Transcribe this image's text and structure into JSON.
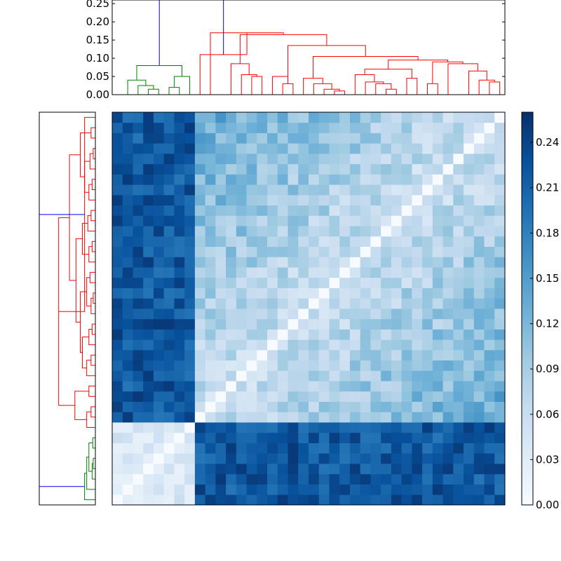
{
  "chart_data": [
    {
      "type": "dendrogram",
      "orientation": "top",
      "ylim": [
        0,
        0.26
      ],
      "yticks": [
        0.0,
        0.05,
        0.1,
        0.15,
        0.2,
        0.25
      ],
      "ytick_labels": [
        "0.00",
        "0.05",
        "0.10",
        "0.15",
        "0.20",
        "0.25"
      ],
      "leaf_count": 38,
      "links": [
        {
          "x": [
            3,
            4
          ],
          "h": 0.015,
          "color": "#008000"
        },
        {
          "x": [
            2,
            3.5
          ],
          "h": 0.025,
          "color": "#008000"
        },
        {
          "x": [
            5,
            6
          ],
          "h": 0.02,
          "color": "#008000"
        },
        {
          "x": [
            1,
            2.75
          ],
          "h": 0.04,
          "color": "#008000"
        },
        {
          "x": [
            5.5,
            7
          ],
          "h": 0.05,
          "color": "#008000"
        },
        {
          "x": [
            1.875,
            6.25
          ],
          "h": 0.08,
          "color": "#008000"
        },
        {
          "x": [
            13,
            14
          ],
          "h": 0.05,
          "color": "#ff0000"
        },
        {
          "x": [
            12,
            13.5
          ],
          "h": 0.055,
          "color": "#ff0000"
        },
        {
          "x": [
            11,
            12.75
          ],
          "h": 0.085,
          "color": "#ff0000"
        },
        {
          "x": [
            16,
            17
          ],
          "h": 0.03,
          "color": "#ff0000"
        },
        {
          "x": [
            15,
            16.5
          ],
          "h": 0.05,
          "color": "#ff0000"
        },
        {
          "x": [
            21,
            22
          ],
          "h": 0.01,
          "color": "#ff0000"
        },
        {
          "x": [
            20,
            21.5
          ],
          "h": 0.015,
          "color": "#ff0000"
        },
        {
          "x": [
            19,
            20.75
          ],
          "h": 0.03,
          "color": "#ff0000"
        },
        {
          "x": [
            18,
            19.875
          ],
          "h": 0.045,
          "color": "#ff0000"
        },
        {
          "x": [
            26,
            27
          ],
          "h": 0.015,
          "color": "#ff0000"
        },
        {
          "x": [
            25,
            26.5
          ],
          "h": 0.03,
          "color": "#ff0000"
        },
        {
          "x": [
            24,
            25.75
          ],
          "h": 0.035,
          "color": "#ff0000"
        },
        {
          "x": [
            23,
            24.875
          ],
          "h": 0.055,
          "color": "#ff0000"
        },
        {
          "x": [
            28,
            29
          ],
          "h": 0.045,
          "color": "#ff0000"
        },
        {
          "x": [
            23.9375,
            28.5
          ],
          "h": 0.07,
          "color": "#ff0000"
        },
        {
          "x": [
            30,
            31
          ],
          "h": 0.03,
          "color": "#ff0000"
        },
        {
          "x": [
            36,
            37
          ],
          "h": 0.035,
          "color": "#ff0000"
        },
        {
          "x": [
            35,
            36.5
          ],
          "h": 0.04,
          "color": "#ff0000"
        },
        {
          "x": [
            34,
            35.75
          ],
          "h": 0.065,
          "color": "#ff0000"
        },
        {
          "x": [
            32,
            34.875
          ],
          "h": 0.085,
          "color": "#ff0000"
        },
        {
          "x": [
            30.5,
            33.4375
          ],
          "h": 0.09,
          "color": "#ff0000"
        },
        {
          "x": [
            26.21875,
            31.96875
          ],
          "h": 0.095,
          "color": "#ff0000"
        },
        {
          "x": [
            18.9375,
            29.09375
          ],
          "h": 0.105,
          "color": "#ff0000"
        },
        {
          "x": [
            16.5,
            24.015625
          ],
          "h": 0.135,
          "color": "#ff0000"
        },
        {
          "x": [
            11.875,
            20.2578125
          ],
          "h": 0.165,
          "color": "#ff0000"
        },
        {
          "x": [
            9,
            16.06640625
          ],
          "h": 0.17,
          "color": "#ff0000"
        },
        {
          "x": [
            8,
            12.533203125
          ],
          "h": 0.11,
          "color": "#ff0000"
        },
        {
          "x": [
            4.0625,
            10.2666015625
          ],
          "h": 0.26,
          "color": "#0000ff"
        }
      ]
    },
    {
      "type": "dendrogram",
      "orientation": "left",
      "leaf_count": 38,
      "links": [
        {
          "y": [
            3,
            4
          ],
          "h": 0.01,
          "color": "#008000"
        },
        {
          "y": [
            2,
            3.5
          ],
          "h": 0.015,
          "color": "#008000"
        },
        {
          "y": [
            5,
            6
          ],
          "h": 0.012,
          "color": "#008000"
        },
        {
          "y": [
            2.75,
            5.5
          ],
          "h": 0.03,
          "color": "#008000"
        },
        {
          "y": [
            1,
            4.125
          ],
          "h": 0.04,
          "color": "#008000"
        },
        {
          "y": [
            0,
            2.5625
          ],
          "h": 0.05,
          "color": "#008000"
        },
        {
          "y": [
            8,
            9
          ],
          "h": 0.02,
          "color": "#ff0000"
        },
        {
          "y": [
            7,
            8.5
          ],
          "h": 0.04,
          "color": "#ff0000"
        },
        {
          "y": [
            10,
            11
          ],
          "h": 0.03,
          "color": "#ff0000"
        },
        {
          "y": [
            7.75,
            10.5
          ],
          "h": 0.095,
          "color": "#ff0000"
        },
        {
          "y": [
            13,
            14
          ],
          "h": 0.02,
          "color": "#ff0000"
        },
        {
          "y": [
            12,
            13.5
          ],
          "h": 0.04,
          "color": "#ff0000"
        },
        {
          "y": [
            16,
            17
          ],
          "h": 0.015,
          "color": "#ff0000"
        },
        {
          "y": [
            15,
            16.5
          ],
          "h": 0.03,
          "color": "#ff0000"
        },
        {
          "y": [
            12.75,
            15.75
          ],
          "h": 0.06,
          "color": "#ff0000"
        },
        {
          "y": [
            19,
            20
          ],
          "h": 0.01,
          "color": "#ff0000"
        },
        {
          "y": [
            18,
            19.5
          ],
          "h": 0.02,
          "color": "#ff0000"
        },
        {
          "y": [
            21,
            22
          ],
          "h": 0.025,
          "color": "#ff0000"
        },
        {
          "y": [
            18.75,
            21.5
          ],
          "h": 0.04,
          "color": "#ff0000"
        },
        {
          "y": [
            14.25,
            20.125
          ],
          "h": 0.07,
          "color": "#ff0000"
        },
        {
          "y": [
            24,
            25
          ],
          "h": 0.015,
          "color": "#ff0000"
        },
        {
          "y": [
            23,
            24.5
          ],
          "h": 0.03,
          "color": "#ff0000"
        },
        {
          "y": [
            27,
            28
          ],
          "h": 0.02,
          "color": "#ff0000"
        },
        {
          "y": [
            26,
            27.5
          ],
          "h": 0.035,
          "color": "#ff0000"
        },
        {
          "y": [
            23.75,
            26.75
          ],
          "h": 0.06,
          "color": "#ff0000"
        },
        {
          "y": [
            17.1875,
            25.25
          ],
          "h": 0.09,
          "color": "#ff0000"
        },
        {
          "y": [
            30,
            31
          ],
          "h": 0.015,
          "color": "#ff0000"
        },
        {
          "y": [
            29,
            30.5
          ],
          "h": 0.03,
          "color": "#ff0000"
        },
        {
          "y": [
            33,
            34
          ],
          "h": 0.01,
          "color": "#ff0000"
        },
        {
          "y": [
            32,
            33.5
          ],
          "h": 0.025,
          "color": "#ff0000"
        },
        {
          "y": [
            29.75,
            32.75
          ],
          "h": 0.05,
          "color": "#ff0000"
        },
        {
          "y": [
            35,
            36
          ],
          "h": 0.02,
          "color": "#ff0000"
        },
        {
          "y": [
            31.25,
            35.5
          ],
          "h": 0.07,
          "color": "#ff0000"
        },
        {
          "y": [
            21.21875,
            33.375
          ],
          "h": 0.12,
          "color": "#ff0000"
        },
        {
          "y": [
            9.125,
            27.296875
          ],
          "h": 0.17,
          "color": "#ff0000"
        },
        {
          "y": [
            18.2109375,
            37
          ],
          "h": 0.05,
          "color": "#ff0000"
        },
        {
          "y": [
            1.28125,
            27.60546875
          ],
          "h": 0.26,
          "color": "#0000ff"
        }
      ]
    },
    {
      "type": "heatmap",
      "rows": 38,
      "cols": 38,
      "group_bounds": [
        0,
        8,
        38
      ],
      "within_group_base": 0.02,
      "between_group_value": 0.22
    },
    {
      "type": "colorbar",
      "ylim": [
        0,
        0.26
      ],
      "ticks": [
        0.0,
        0.03,
        0.06,
        0.09,
        0.12,
        0.15,
        0.18,
        0.21,
        0.24
      ],
      "tick_labels": [
        "0.00",
        "0.03",
        "0.06",
        "0.09",
        "0.12",
        "0.15",
        "0.18",
        "0.21",
        "0.24"
      ],
      "colormap": "Blues",
      "colors": [
        "#f7fbff",
        "#deebf7",
        "#c6dbef",
        "#9ecae1",
        "#6baed6",
        "#4292c6",
        "#2171b5",
        "#08519c",
        "#08306b"
      ]
    }
  ]
}
